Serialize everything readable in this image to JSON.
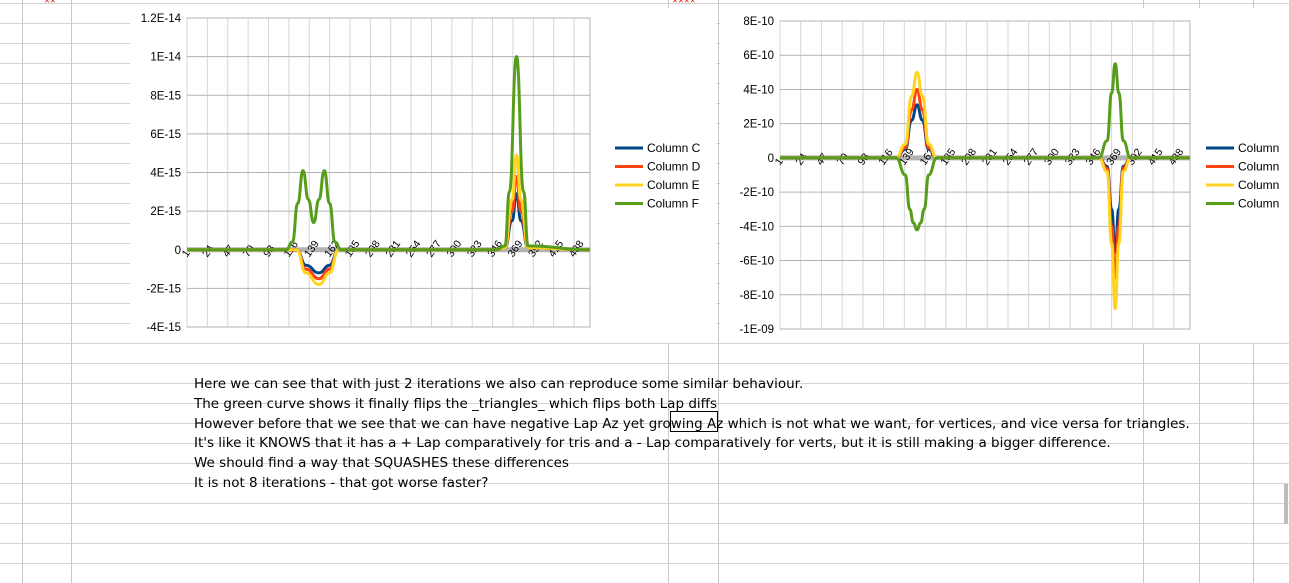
{
  "charts": [
    {
      "id": "left",
      "y_ticks": [
        "1.2E-14",
        "1E-14",
        "8E-15",
        "6E-15",
        "4E-15",
        "2E-15",
        "0",
        "-2E-15",
        "-4E-15"
      ],
      "y_values": [
        1.2e-14,
        1e-14,
        8e-15,
        6e-15,
        4e-15,
        2e-15,
        0,
        -2e-15,
        -4e-15
      ],
      "x_ticks": [
        "1",
        "24",
        "47",
        "70",
        "93",
        "116",
        "139",
        "162",
        "185",
        "208",
        "231",
        "254",
        "277",
        "300",
        "323",
        "346",
        "369",
        "392",
        "415",
        "438"
      ],
      "legend": [
        "Column C",
        "Column D",
        "Column E",
        "Column F"
      ]
    },
    {
      "id": "right",
      "y_ticks": [
        "8E-10",
        "6E-10",
        "4E-10",
        "2E-10",
        "0",
        "-2E-10",
        "-4E-10",
        "-6E-10",
        "-8E-10",
        "-1E-09"
      ],
      "y_values": [
        8e-10,
        6e-10,
        4e-10,
        2e-10,
        0,
        -2e-10,
        -4e-10,
        -6e-10,
        -8e-10,
        -1e-09
      ],
      "x_ticks": [
        "1",
        "24",
        "47",
        "70",
        "93",
        "116",
        "139",
        "162",
        "185",
        "208",
        "231",
        "254",
        "277",
        "300",
        "323",
        "346",
        "369",
        "392",
        "415",
        "438"
      ],
      "legend": [
        "Column",
        "Column",
        "Column",
        "Column"
      ]
    }
  ],
  "chart_data": [
    {
      "type": "line",
      "ylim": [
        -4e-15,
        1.2e-14
      ],
      "xlim": [
        1,
        456
      ],
      "series": [
        {
          "name": "Column C",
          "color": "#004586",
          "points": [
            [
              1,
              0
            ],
            [
              125,
              0
            ],
            [
              135,
              -8e-16
            ],
            [
              150,
              -1.2e-15
            ],
            [
              162,
              -8e-16
            ],
            [
              172,
              0
            ],
            [
              350,
              0
            ],
            [
              360,
              1e-16
            ],
            [
              368,
              1.5e-15
            ],
            [
              373,
              2.9e-15
            ],
            [
              378,
              1.5e-15
            ],
            [
              386,
              1e-16
            ],
            [
              456,
              0
            ]
          ]
        },
        {
          "name": "Column D",
          "color": "#ff420e",
          "points": [
            [
              1,
              0
            ],
            [
              125,
              0
            ],
            [
              135,
              -1e-15
            ],
            [
              150,
              -1.5e-15
            ],
            [
              162,
              -1e-15
            ],
            [
              172,
              0
            ],
            [
              350,
              0
            ],
            [
              360,
              1e-16
            ],
            [
              368,
              2e-15
            ],
            [
              373,
              3.8e-15
            ],
            [
              378,
              2e-15
            ],
            [
              386,
              1e-16
            ],
            [
              456,
              0
            ]
          ]
        },
        {
          "name": "Column E",
          "color": "#ffd320",
          "points": [
            [
              1,
              0
            ],
            [
              125,
              0
            ],
            [
              135,
              -1.2e-15
            ],
            [
              150,
              -1.8e-15
            ],
            [
              162,
              -1.2e-15
            ],
            [
              172,
              0
            ],
            [
              350,
              0
            ],
            [
              360,
              1e-16
            ],
            [
              368,
              2.6e-15
            ],
            [
              373,
              4.9e-15
            ],
            [
              378,
              2.6e-15
            ],
            [
              386,
              1e-16
            ],
            [
              456,
              0
            ]
          ]
        },
        {
          "name": "Column F",
          "color": "#579d1c",
          "points": [
            [
              1,
              0
            ],
            [
              113,
              0
            ],
            [
              120,
              4e-16
            ],
            [
              126,
              2.4e-15
            ],
            [
              132,
              4.1e-15
            ],
            [
              138,
              2.6e-15
            ],
            [
              144,
              1.4e-15
            ],
            [
              150,
              2.6e-15
            ],
            [
              156,
              4.1e-15
            ],
            [
              162,
              2.4e-15
            ],
            [
              168,
              4e-16
            ],
            [
              175,
              0
            ],
            [
              350,
              0
            ],
            [
              360,
              2e-16
            ],
            [
              365,
              3e-15
            ],
            [
              373,
              1e-14
            ],
            [
              381,
              3e-15
            ],
            [
              386,
              2e-16
            ],
            [
              456,
              0
            ]
          ]
        }
      ]
    },
    {
      "type": "line",
      "ylim": [
        -1e-09,
        8e-10
      ],
      "xlim": [
        1,
        456
      ],
      "series": [
        {
          "name": "Column",
          "color": "#004586",
          "points": [
            [
              1,
              0
            ],
            [
              130,
              0
            ],
            [
              140,
              5e-11
            ],
            [
              147,
              2.2e-10
            ],
            [
              153,
              3.1e-10
            ],
            [
              159,
              2.2e-10
            ],
            [
              166,
              5e-11
            ],
            [
              175,
              0
            ],
            [
              355,
              0
            ],
            [
              364,
              -5e-11
            ],
            [
              369,
              -3e-10
            ],
            [
              373,
              -5.5e-10
            ],
            [
              377,
              -3e-10
            ],
            [
              382,
              -5e-11
            ],
            [
              390,
              0
            ],
            [
              456,
              0
            ]
          ]
        },
        {
          "name": "Column",
          "color": "#ff420e",
          "points": [
            [
              1,
              0
            ],
            [
              130,
              0
            ],
            [
              140,
              6e-11
            ],
            [
              147,
              2.8e-10
            ],
            [
              153,
              4e-10
            ],
            [
              159,
              2.8e-10
            ],
            [
              166,
              6e-11
            ],
            [
              175,
              0
            ],
            [
              355,
              0
            ],
            [
              364,
              -6e-11
            ],
            [
              369,
              -4e-10
            ],
            [
              373,
              -7e-10
            ],
            [
              377,
              -4e-10
            ],
            [
              382,
              -6e-11
            ],
            [
              390,
              0
            ],
            [
              456,
              0
            ]
          ]
        },
        {
          "name": "Column",
          "color": "#ffd320",
          "points": [
            [
              1,
              0
            ],
            [
              130,
              0
            ],
            [
              140,
              8e-11
            ],
            [
              147,
              3.6e-10
            ],
            [
              153,
              5e-10
            ],
            [
              159,
              3.6e-10
            ],
            [
              166,
              8e-11
            ],
            [
              175,
              0
            ],
            [
              355,
              0
            ],
            [
              364,
              -8e-11
            ],
            [
              369,
              -5e-10
            ],
            [
              373,
              -8.8e-10
            ],
            [
              377,
              -5e-10
            ],
            [
              382,
              -8e-11
            ],
            [
              390,
              0
            ],
            [
              456,
              0
            ]
          ]
        },
        {
          "name": "Column",
          "color": "#579d1c",
          "points": [
            [
              1,
              0
            ],
            [
              130,
              0
            ],
            [
              140,
              -1e-10
            ],
            [
              145,
              -3e-10
            ],
            [
              149,
              -3.8e-10
            ],
            [
              153,
              -4.2e-10
            ],
            [
              157,
              -3.8e-10
            ],
            [
              161,
              -3e-10
            ],
            [
              166,
              -1e-10
            ],
            [
              175,
              0
            ],
            [
              355,
              0
            ],
            [
              364,
              1e-10
            ],
            [
              369,
              3.8e-10
            ],
            [
              373,
              5.5e-10
            ],
            [
              377,
              3.8e-10
            ],
            [
              382,
              1e-10
            ],
            [
              390,
              0
            ],
            [
              456,
              0
            ]
          ]
        }
      ]
    }
  ],
  "notes": [
    "Here we can see that with just 2 iterations we also can reproduce some similar behaviour.",
    "The green curve shows it finally flips the _triangles_ which flips both Lap diffs",
    "However before that we see that we can have negative Lap Az yet growing Az which is not what we want, for vertices, and vice versa for triangles.",
    "It's like it KNOWS that it has a + Lap comparatively for tris and a - Lap comparatively for verts, but it is still making a bigger difference.",
    "We should find a way that SQUASHES these differences",
    "It is not 8 iterations - that got worse faster?"
  ]
}
